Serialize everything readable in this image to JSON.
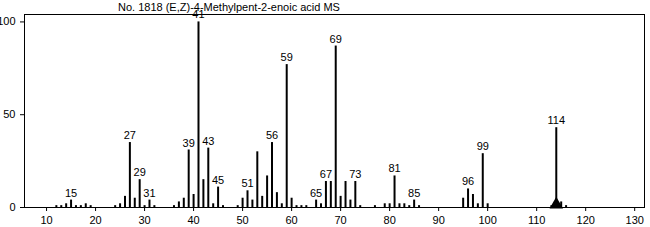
{
  "chart_data": {
    "type": "bar",
    "title": "No. 1818   (E,Z)-4-Methylpent-2-enoic acid MS",
    "x": [
      12,
      13,
      14,
      15,
      16,
      17,
      18,
      19,
      24,
      25,
      26,
      27,
      28,
      29,
      30,
      31,
      32,
      36,
      37,
      38,
      39,
      40,
      41,
      42,
      43,
      44,
      45,
      46,
      49,
      50,
      51,
      52,
      53,
      54,
      55,
      56,
      57,
      58,
      59,
      60,
      61,
      62,
      63,
      65,
      66,
      67,
      68,
      69,
      70,
      71,
      72,
      73,
      74,
      77,
      79,
      80,
      81,
      82,
      83,
      84,
      85,
      86,
      95,
      96,
      97,
      98,
      99,
      100,
      113,
      114,
      115,
      116
    ],
    "values": [
      1,
      1,
      2,
      4,
      1,
      1,
      2,
      1,
      1,
      2,
      6,
      35,
      5,
      15,
      1,
      4,
      1,
      1,
      3,
      5,
      31,
      7,
      100,
      15,
      32,
      2,
      11,
      1,
      1,
      5,
      9,
      4,
      30,
      6,
      17,
      35,
      8,
      2,
      77,
      5,
      1,
      1,
      1,
      4,
      2,
      14,
      14,
      87,
      6,
      14,
      4,
      14,
      1,
      1,
      2,
      2,
      17,
      2,
      2,
      1,
      4,
      1,
      5,
      10,
      7,
      2,
      29,
      2,
      1,
      43,
      3,
      1
    ],
    "labeled_peaks": [
      15,
      27,
      29,
      31,
      39,
      41,
      43,
      45,
      51,
      56,
      59,
      65,
      67,
      69,
      73,
      81,
      85,
      96,
      99,
      114
    ],
    "molecular_ion": 114,
    "color": "#000000",
    "xlim": [
      5.5,
      132
    ],
    "ylim": [
      0,
      104
    ],
    "xticks": [
      10,
      20,
      30,
      40,
      50,
      60,
      70,
      80,
      90,
      100,
      110,
      120,
      130
    ],
    "yticks": [
      0,
      50,
      100
    ]
  }
}
